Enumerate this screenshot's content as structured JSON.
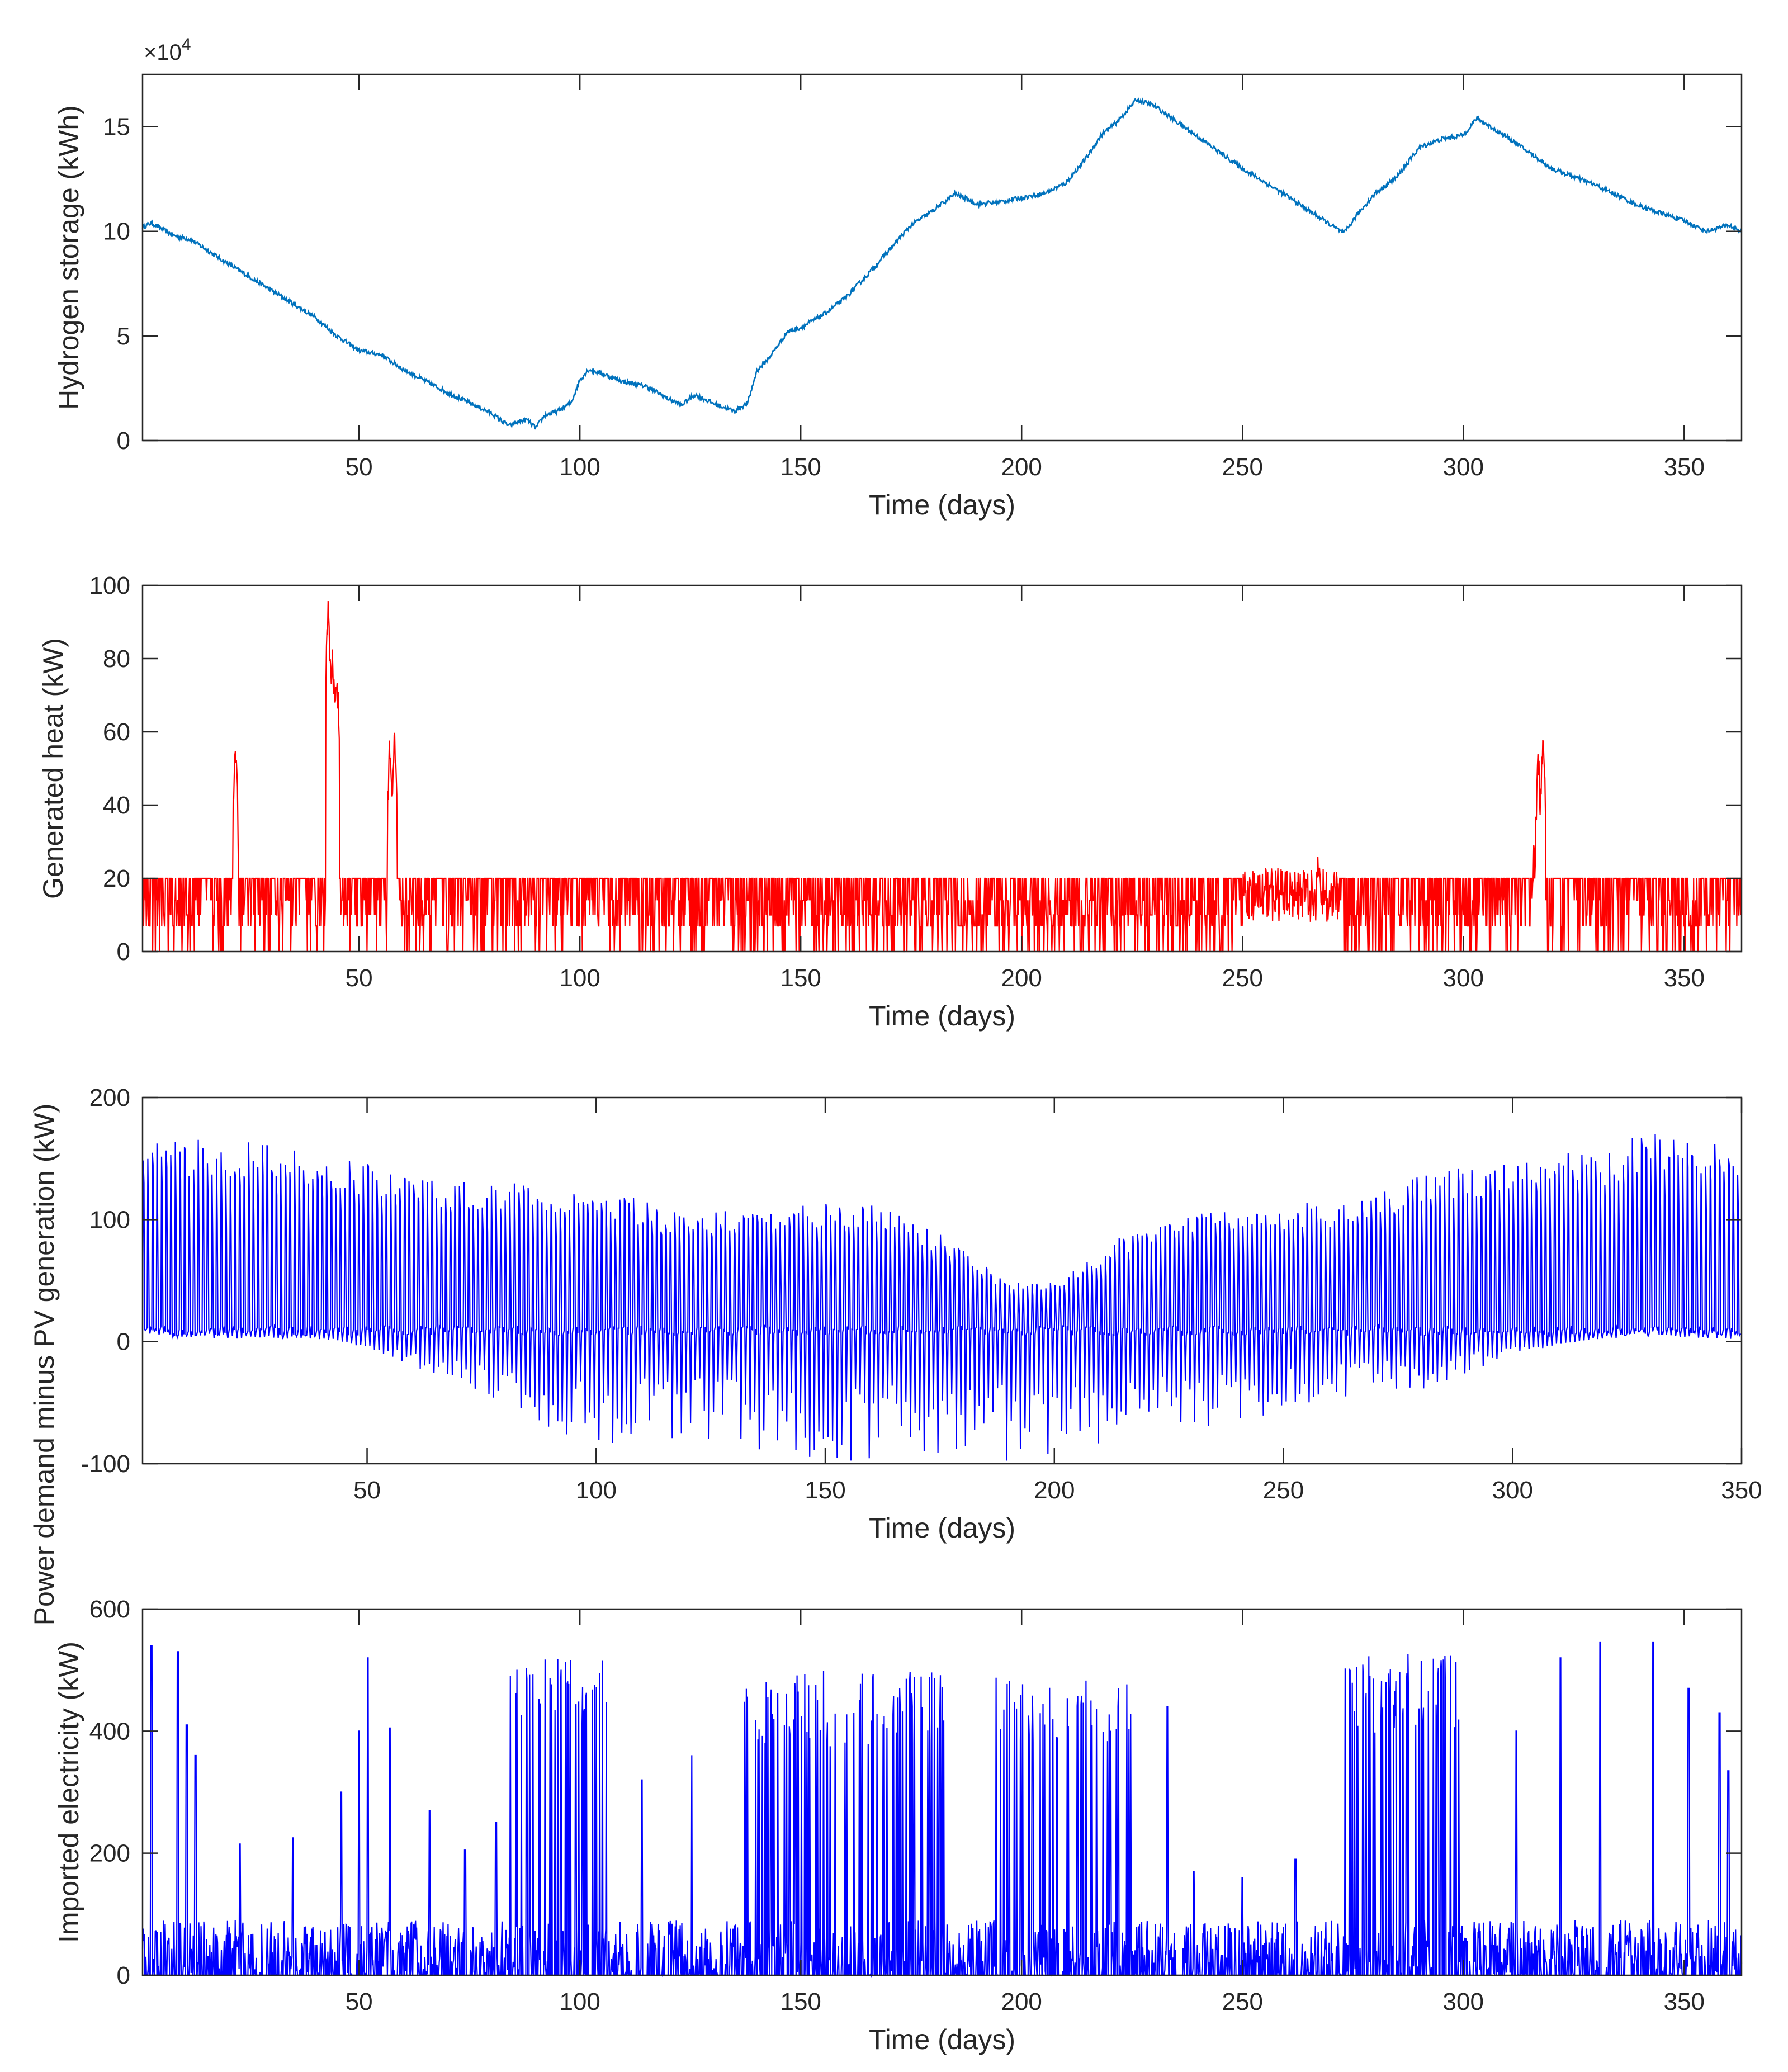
{
  "chart_data": [
    {
      "type": "line",
      "xlabel": "Time (days)",
      "ylabel": "Hydrogen storage (kWh)",
      "exponent_base": "×10",
      "exponent_power": "4",
      "xlim": [
        1,
        363
      ],
      "ylim": [
        0,
        17.5
      ],
      "xticks": [
        50,
        100,
        150,
        200,
        250,
        300,
        350
      ],
      "yticks": [
        0,
        5,
        10,
        15
      ],
      "color": "#0072BD",
      "series": [
        {
          "name": "Hydrogen storage",
          "x": [
            1,
            3,
            8,
            12,
            20,
            30,
            40,
            45,
            50,
            55,
            60,
            70,
            80,
            84,
            86,
            88,
            90,
            92,
            95,
            98,
            100,
            102,
            105,
            110,
            115,
            120,
            123,
            126,
            130,
            135,
            138,
            140,
            143,
            147,
            150,
            155,
            160,
            165,
            170,
            175,
            180,
            185,
            190,
            195,
            200,
            205,
            210,
            215,
            218,
            222,
            226,
            230,
            240,
            250,
            260,
            270,
            273,
            276,
            280,
            285,
            290,
            295,
            300,
            303,
            310,
            320,
            330,
            340,
            350,
            355,
            360,
            363
          ],
          "y": [
            10.2,
            10.4,
            9.8,
            9.6,
            8.5,
            7.2,
            5.9,
            5.0,
            4.3,
            4.1,
            3.4,
            2.3,
            1.3,
            0.7,
            0.9,
            1.0,
            0.6,
            1.2,
            1.4,
            1.8,
            2.9,
            3.4,
            3.2,
            2.8,
            2.6,
            2.0,
            1.7,
            2.2,
            1.8,
            1.4,
            1.8,
            3.3,
            4.0,
            5.2,
            5.4,
            6.0,
            6.8,
            7.9,
            9.1,
            10.3,
            11.0,
            11.8,
            11.3,
            11.4,
            11.6,
            11.8,
            12.3,
            13.6,
            14.6,
            15.3,
            16.3,
            16.0,
            14.5,
            13.0,
            11.7,
            10.3,
            9.9,
            10.8,
            11.8,
            12.6,
            14.0,
            14.4,
            14.6,
            15.4,
            14.5,
            13.0,
            12.2,
            11.2,
            10.5,
            10.0,
            10.3,
            10.0
          ]
        }
      ]
    },
    {
      "type": "line",
      "xlabel": "Time (days)",
      "ylabel": "Generated heat (kW)",
      "xlim": [
        1,
        363
      ],
      "ylim": [
        0,
        100
      ],
      "xticks": [
        50,
        100,
        150,
        200,
        250,
        300,
        350
      ],
      "yticks": [
        0,
        20,
        40,
        60,
        80,
        100
      ],
      "color": "#FF0000",
      "series": [
        {
          "name": "Generated heat",
          "baseline": 20,
          "low_levels": [
            0,
            7,
            10,
            14
          ],
          "peaks": [
            {
              "x": 22,
              "y": 60
            },
            {
              "x": 43,
              "y": 97
            },
            {
              "x": 44,
              "y": 85
            },
            {
              "x": 45,
              "y": 80
            },
            {
              "x": 57,
              "y": 62
            },
            {
              "x": 58,
              "y": 65
            },
            {
              "x": 264,
              "y": 25
            },
            {
              "x": 267,
              "y": 28
            },
            {
              "x": 316,
              "y": 34
            },
            {
              "x": 317,
              "y": 58
            },
            {
              "x": 318,
              "y": 63
            }
          ]
        }
      ]
    },
    {
      "type": "line",
      "xlabel": "Time (days)",
      "ylabel": "Power demand minus PV generation (kW)",
      "xlim": [
        1,
        350
      ],
      "ylim": [
        -100,
        200
      ],
      "xticks": [
        50,
        100,
        150,
        200,
        250,
        300,
        350
      ],
      "yticks": [
        -100,
        0,
        100,
        200
      ],
      "color": "#0000FF",
      "series": [
        {
          "name": "Net demand",
          "daily_peak_envelope": {
            "x": [
              1,
              20,
              40,
              60,
              80,
              100,
              120,
              140,
              160,
              180,
              190,
              200,
              220,
              240,
              260,
              280,
              300,
              320,
              330,
              350
            ],
            "y": [
              160,
              158,
              150,
              130,
              125,
              120,
              100,
              105,
              110,
              75,
              45,
              50,
              95,
              105,
              110,
              130,
              145,
              150,
              165,
              150
            ]
          },
          "daily_min_envelope": {
            "x": [
              1,
              20,
              40,
              60,
              80,
              100,
              120,
              140,
              160,
              180,
              190,
              200,
              220,
              240,
              260,
              280,
              300,
              320,
              330,
              350
            ],
            "y": [
              10,
              5,
              5,
              -20,
              -50,
              -80,
              -70,
              -85,
              -90,
              -80,
              -90,
              -85,
              -70,
              -60,
              -45,
              -35,
              -10,
              5,
              10,
              5
            ]
          }
        }
      ]
    },
    {
      "type": "line",
      "xlabel": "Time (days)",
      "ylabel": "Imported electricity (kW)",
      "xlim": [
        1,
        363
      ],
      "ylim": [
        0,
        600
      ],
      "xticks": [
        50,
        100,
        150,
        200,
        250,
        300,
        350
      ],
      "yticks": [
        0,
        200,
        400,
        600
      ],
      "color": "#0000FF",
      "series": [
        {
          "name": "Imported electricity",
          "dense_periods": [
            {
              "from": 84,
              "to": 106,
              "peak": 530
            },
            {
              "from": 125,
              "to": 127,
              "peak": 380
            },
            {
              "from": 137,
              "to": 183,
              "peak": 500
            },
            {
              "from": 194,
              "to": 225,
              "peak": 490
            },
            {
              "from": 272,
              "to": 300,
              "peak": 530
            }
          ],
          "spikes": [
            {
              "x": 3,
              "y": 540
            },
            {
              "x": 9,
              "y": 530
            },
            {
              "x": 11,
              "y": 410
            },
            {
              "x": 13,
              "y": 360
            },
            {
              "x": 23,
              "y": 215
            },
            {
              "x": 35,
              "y": 225
            },
            {
              "x": 46,
              "y": 300
            },
            {
              "x": 50,
              "y": 400
            },
            {
              "x": 52,
              "y": 520
            },
            {
              "x": 57,
              "y": 405
            },
            {
              "x": 66,
              "y": 270
            },
            {
              "x": 74,
              "y": 205
            },
            {
              "x": 81,
              "y": 250
            },
            {
              "x": 114,
              "y": 320
            },
            {
              "x": 233,
              "y": 440
            },
            {
              "x": 239,
              "y": 170
            },
            {
              "x": 250,
              "y": 160
            },
            {
              "x": 262,
              "y": 190
            },
            {
              "x": 312,
              "y": 400
            },
            {
              "x": 322,
              "y": 520
            },
            {
              "x": 331,
              "y": 545
            },
            {
              "x": 343,
              "y": 545
            },
            {
              "x": 351,
              "y": 470
            },
            {
              "x": 358,
              "y": 430
            },
            {
              "x": 360,
              "y": 335
            }
          ]
        }
      ]
    }
  ]
}
